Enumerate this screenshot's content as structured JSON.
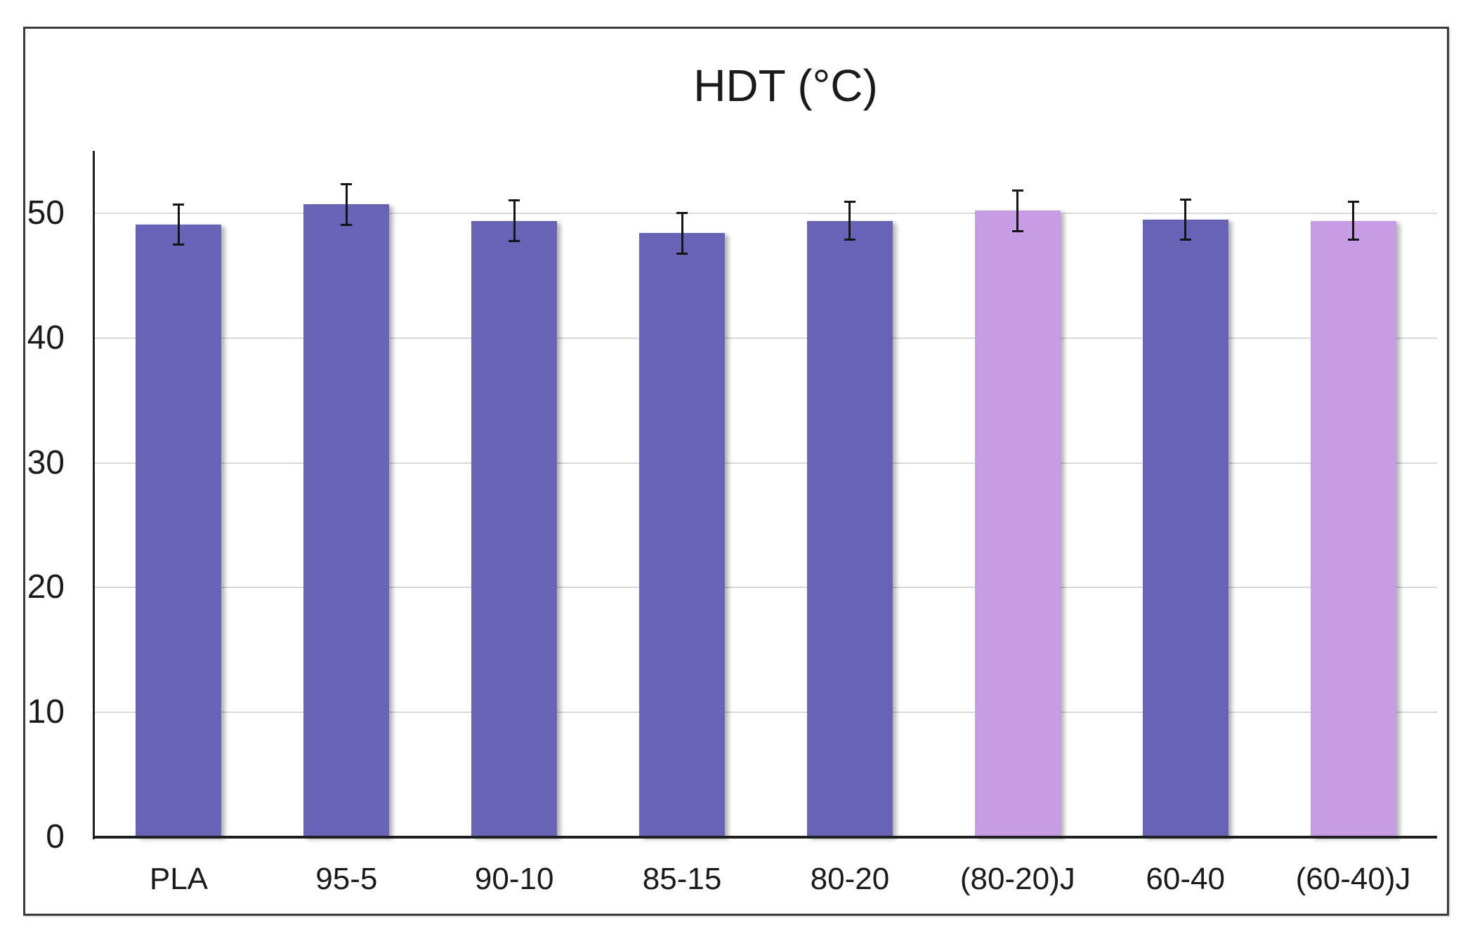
{
  "figure": {
    "title": "HDT (°C)"
  },
  "chart_data": {
    "type": "bar",
    "title": "HDT (°C)",
    "categories": [
      "PLA",
      "95-5",
      "90-10",
      "85-15",
      "80-20",
      "(80-20)J",
      "60-40",
      "(60-40)J"
    ],
    "values": [
      49.1,
      50.7,
      49.4,
      48.4,
      49.4,
      50.2,
      49.5,
      49.4
    ],
    "errors": [
      1.7,
      1.7,
      1.7,
      1.7,
      1.6,
      1.7,
      1.7,
      1.6
    ],
    "bar_color_keys": [
      "dark",
      "dark",
      "dark",
      "dark",
      "dark",
      "light",
      "dark",
      "light"
    ],
    "colors": {
      "dark": "#6963B7",
      "light": "#C69DE4",
      "gridline": "#D9D9D9",
      "axis": "#1F1F1F",
      "error_bar": "#151515",
      "frame": "#3B3B3B"
    },
    "xlabel": "",
    "ylabel": "",
    "ylim": [
      0,
      55
    ],
    "yticks": [
      0,
      10,
      20,
      30,
      40,
      50
    ],
    "grid": true,
    "legend": false,
    "error_bars": true
  }
}
